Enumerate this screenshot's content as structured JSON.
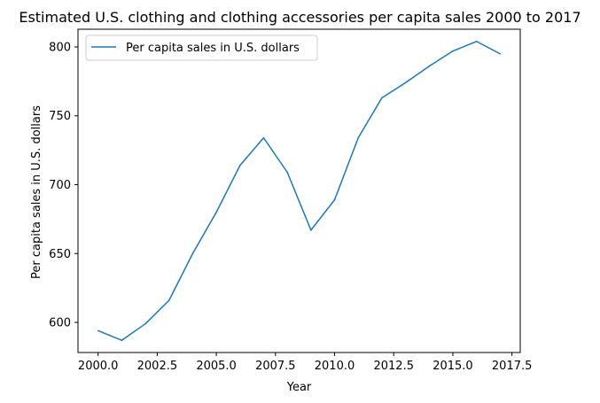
{
  "chart_data": {
    "type": "line",
    "title": "Estimated U.S. clothing and clothing accessories per capita sales 2000 to 2017",
    "xlabel": "Year",
    "ylabel": "Per capita sales in U.S. dollars",
    "xlim": [
      1999.15,
      2017.85
    ],
    "ylim": [
      578.15,
      812.85
    ],
    "x_ticks": [
      2000.0,
      2002.5,
      2005.0,
      2007.5,
      2010.0,
      2012.5,
      2015.0,
      2017.5
    ],
    "x_tick_labels": [
      "2000.0",
      "2002.5",
      "2005.0",
      "2007.5",
      "2010.0",
      "2012.5",
      "2015.0",
      "2017.5"
    ],
    "y_ticks": [
      600,
      650,
      700,
      750,
      800
    ],
    "y_tick_labels": [
      "600",
      "650",
      "700",
      "750",
      "800"
    ],
    "grid": false,
    "legend_position": "top-left",
    "series": [
      {
        "name": "Per capita sales in U.S. dollars",
        "color": "#1f77b4",
        "x": [
          2000,
          2001,
          2002,
          2003,
          2004,
          2005,
          2006,
          2007,
          2008,
          2009,
          2010,
          2011,
          2012,
          2013,
          2014,
          2015,
          2016,
          2017
        ],
        "y": [
          594,
          587,
          599,
          616,
          650,
          680,
          714,
          734,
          709,
          667,
          689,
          734,
          763,
          774,
          786,
          797,
          804,
          795
        ]
      }
    ]
  }
}
